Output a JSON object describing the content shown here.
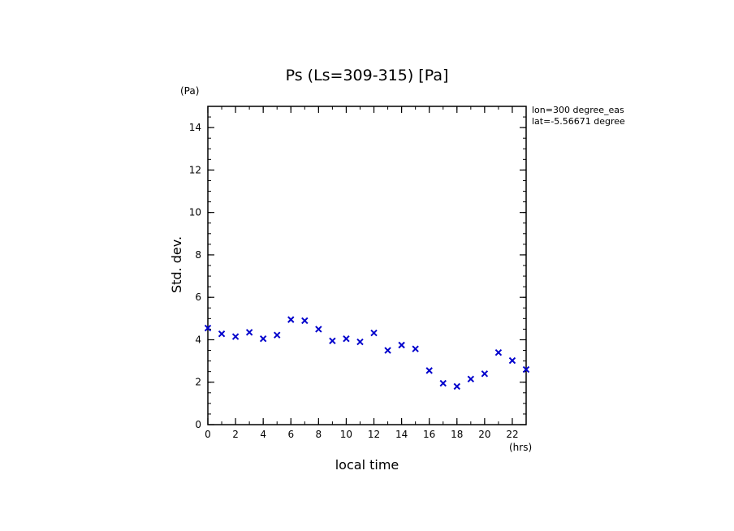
{
  "chart_data": {
    "type": "scatter",
    "title": "Ps (Ls=309-315) [Pa]",
    "xlabel": "local time",
    "ylabel": "Std. dev.",
    "x_unit": "(hrs)",
    "y_unit": "(Pa)",
    "xlim": [
      0,
      23
    ],
    "ylim": [
      0,
      15
    ],
    "xticks": [
      0,
      2,
      4,
      6,
      8,
      10,
      12,
      14,
      16,
      18,
      20,
      22
    ],
    "yticks": [
      0,
      2,
      4,
      6,
      8,
      10,
      12,
      14
    ],
    "x_minor_step": 1,
    "y_minor_step": 0.5,
    "grid": false,
    "marker": "x",
    "color": "#0000cc",
    "annotations": [
      "lon=300 degree_eas",
      "lat=-5.56671 degree"
    ],
    "series": [
      {
        "x": [
          0,
          1,
          2,
          3,
          4,
          5,
          6,
          7,
          8,
          9,
          10,
          11,
          12,
          13,
          14,
          15,
          16,
          17,
          18,
          19,
          20,
          21,
          22,
          23
        ],
        "values": [
          4.55,
          4.28,
          4.15,
          4.35,
          4.05,
          4.22,
          4.95,
          4.9,
          4.5,
          3.95,
          4.05,
          3.9,
          4.32,
          3.5,
          3.75,
          3.57,
          2.55,
          1.95,
          1.8,
          2.15,
          2.4,
          3.4,
          3.02,
          2.6
        ]
      }
    ]
  }
}
